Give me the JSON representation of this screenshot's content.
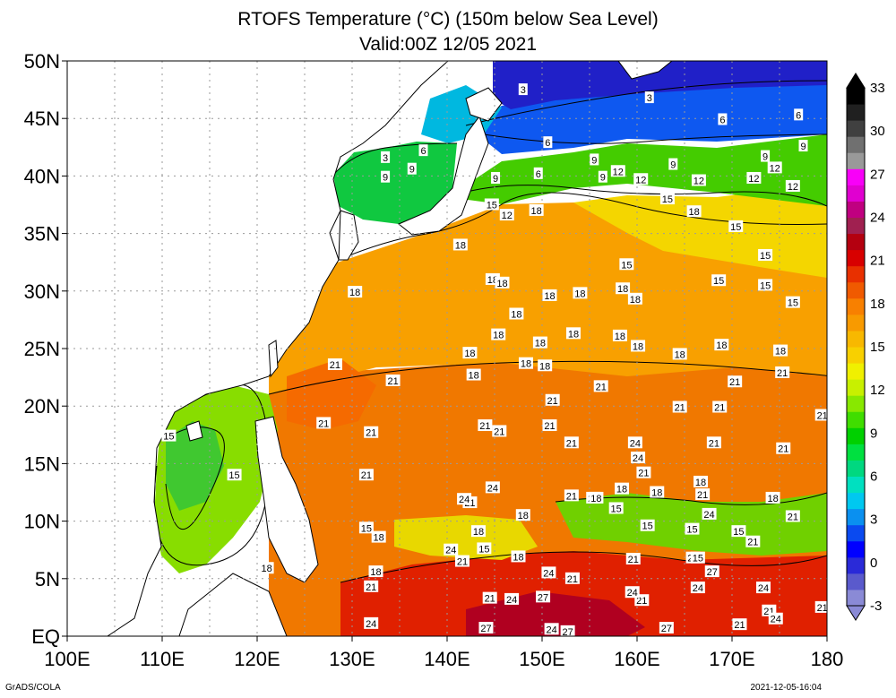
{
  "title": "RTOFS Temperature (°C) (150m below Sea Level)",
  "subtitle": "Valid:00Z 12/05 2021",
  "footer_left": "GrADS/COLA",
  "footer_right": "2021-12-05-16:04",
  "lat_labels": [
    "EQ",
    "5N",
    "10N",
    "15N",
    "20N",
    "25N",
    "30N",
    "35N",
    "40N",
    "45N",
    "50N"
  ],
  "lon_labels": [
    "100E",
    "110E",
    "120E",
    "130E",
    "140E",
    "150E",
    "160E",
    "170E",
    "180"
  ],
  "colorbar": {
    "labels": [
      "-3",
      "0",
      "3",
      "6",
      "9",
      "12",
      "15",
      "18",
      "21",
      "24",
      "27",
      "30",
      "33"
    ],
    "colors": [
      "#8a8ad6",
      "#5a5acc",
      "#2a2ad8",
      "#0000ff",
      "#0a4af0",
      "#0a90f0",
      "#00c8f0",
      "#00e0c0",
      "#00d880",
      "#00e040",
      "#00d000",
      "#40dd00",
      "#88e800",
      "#c8f000",
      "#f0f000",
      "#f8d000",
      "#f8b800",
      "#f89a00",
      "#f88000",
      "#f05a00",
      "#e83000",
      "#d80000",
      "#b40010",
      "#a02050",
      "#c00080",
      "#e000d0",
      "#f800f8",
      "#999999",
      "#707070",
      "#404040",
      "#202020",
      "#000000"
    ]
  },
  "chart_data": {
    "type": "heatmap",
    "variable": "RTOFS Temperature (°C)",
    "depth": "150m below Sea Level",
    "valid": "00Z 12/05 2021",
    "xlim": [
      100,
      180
    ],
    "ylim": [
      0,
      50
    ],
    "color_range": [
      -3,
      33
    ],
    "contour_labels": [
      {
        "lon": 148.0,
        "lat": 47.5,
        "value": "3"
      },
      {
        "lon": 161.3,
        "lat": 46.8,
        "value": "3"
      },
      {
        "lon": 133.5,
        "lat": 41.6,
        "value": "3"
      },
      {
        "lon": 137.5,
        "lat": 42.2,
        "value": "6"
      },
      {
        "lon": 150.6,
        "lat": 42.9,
        "value": "6"
      },
      {
        "lon": 169.0,
        "lat": 44.9,
        "value": "6"
      },
      {
        "lon": 177.0,
        "lat": 45.3,
        "value": "6"
      },
      {
        "lon": 133.5,
        "lat": 39.9,
        "value": "9"
      },
      {
        "lon": 136.3,
        "lat": 40.6,
        "value": "9"
      },
      {
        "lon": 145.1,
        "lat": 39.8,
        "value": "9"
      },
      {
        "lon": 155.5,
        "lat": 41.4,
        "value": "9"
      },
      {
        "lon": 163.8,
        "lat": 41.0,
        "value": "9"
      },
      {
        "lon": 173.5,
        "lat": 41.7,
        "value": "9"
      },
      {
        "lon": 177.5,
        "lat": 42.6,
        "value": "9"
      },
      {
        "lon": 158.0,
        "lat": 40.4,
        "value": "12"
      },
      {
        "lon": 160.4,
        "lat": 39.7,
        "value": "12"
      },
      {
        "lon": 166.5,
        "lat": 39.6,
        "value": "12"
      },
      {
        "lon": 172.3,
        "lat": 39.8,
        "value": "12"
      },
      {
        "lon": 176.4,
        "lat": 39.1,
        "value": "12"
      },
      {
        "lon": 146.3,
        "lat": 36.6,
        "value": "12"
      },
      {
        "lon": 174.5,
        "lat": 40.7,
        "value": "12"
      },
      {
        "lon": 149.6,
        "lat": 40.2,
        "value": "6"
      },
      {
        "lon": 156.4,
        "lat": 39.9,
        "value": "9"
      },
      {
        "lon": 144.7,
        "lat": 37.5,
        "value": "15"
      },
      {
        "lon": 163.2,
        "lat": 38.0,
        "value": "15"
      },
      {
        "lon": 170.4,
        "lat": 35.6,
        "value": "15"
      },
      {
        "lon": 173.5,
        "lat": 33.1,
        "value": "15"
      },
      {
        "lon": 158.9,
        "lat": 32.3,
        "value": "15"
      },
      {
        "lon": 168.6,
        "lat": 30.9,
        "value": "15"
      },
      {
        "lon": 173.5,
        "lat": 30.5,
        "value": "15"
      },
      {
        "lon": 176.4,
        "lat": 29.0,
        "value": "15"
      },
      {
        "lon": 149.4,
        "lat": 37.0,
        "value": "18"
      },
      {
        "lon": 166.0,
        "lat": 36.9,
        "value": "18"
      },
      {
        "lon": 141.4,
        "lat": 34.0,
        "value": "18"
      },
      {
        "lon": 130.3,
        "lat": 29.9,
        "value": "18"
      },
      {
        "lon": 144.8,
        "lat": 31.0,
        "value": "18"
      },
      {
        "lon": 145.8,
        "lat": 30.7,
        "value": "18"
      },
      {
        "lon": 150.8,
        "lat": 29.6,
        "value": "18"
      },
      {
        "lon": 154.0,
        "lat": 29.8,
        "value": "18"
      },
      {
        "lon": 158.5,
        "lat": 30.2,
        "value": "18"
      },
      {
        "lon": 159.8,
        "lat": 29.3,
        "value": "18"
      },
      {
        "lon": 147.3,
        "lat": 28.0,
        "value": "18"
      },
      {
        "lon": 153.3,
        "lat": 26.3,
        "value": "18"
      },
      {
        "lon": 158.2,
        "lat": 26.1,
        "value": "18"
      },
      {
        "lon": 145.4,
        "lat": 26.2,
        "value": "18"
      },
      {
        "lon": 149.8,
        "lat": 25.5,
        "value": "18"
      },
      {
        "lon": 160.1,
        "lat": 25.2,
        "value": "18"
      },
      {
        "lon": 164.5,
        "lat": 24.5,
        "value": "18"
      },
      {
        "lon": 168.9,
        "lat": 25.3,
        "value": "18"
      },
      {
        "lon": 175.1,
        "lat": 24.8,
        "value": "18"
      },
      {
        "lon": 142.4,
        "lat": 24.6,
        "value": "18"
      },
      {
        "lon": 142.8,
        "lat": 22.7,
        "value": "18"
      },
      {
        "lon": 148.3,
        "lat": 23.7,
        "value": "18"
      },
      {
        "lon": 150.3,
        "lat": 23.5,
        "value": "18"
      },
      {
        "lon": 128.2,
        "lat": 23.6,
        "value": "21"
      },
      {
        "lon": 134.3,
        "lat": 22.2,
        "value": "21"
      },
      {
        "lon": 170.3,
        "lat": 22.1,
        "value": "21"
      },
      {
        "lon": 175.3,
        "lat": 22.9,
        "value": "21"
      },
      {
        "lon": 156.2,
        "lat": 21.7,
        "value": "21"
      },
      {
        "lon": 151.1,
        "lat": 20.5,
        "value": "21"
      },
      {
        "lon": 164.5,
        "lat": 19.9,
        "value": "21"
      },
      {
        "lon": 168.7,
        "lat": 19.9,
        "value": "21"
      },
      {
        "lon": 179.5,
        "lat": 19.2,
        "value": "21"
      },
      {
        "lon": 127.0,
        "lat": 18.5,
        "value": "21"
      },
      {
        "lon": 132.0,
        "lat": 17.7,
        "value": "21"
      },
      {
        "lon": 150.8,
        "lat": 18.3,
        "value": "21"
      },
      {
        "lon": 145.5,
        "lat": 17.8,
        "value": "21"
      },
      {
        "lon": 144.0,
        "lat": 18.3,
        "value": "21"
      },
      {
        "lon": 153.1,
        "lat": 16.8,
        "value": "21"
      },
      {
        "lon": 168.1,
        "lat": 16.8,
        "value": "21"
      },
      {
        "lon": 175.4,
        "lat": 16.3,
        "value": "21"
      },
      {
        "lon": 131.5,
        "lat": 14.0,
        "value": "21"
      },
      {
        "lon": 160.7,
        "lat": 14.2,
        "value": "21"
      },
      {
        "lon": 153.1,
        "lat": 12.2,
        "value": "21"
      },
      {
        "lon": 142.4,
        "lat": 11.6,
        "value": "21"
      },
      {
        "lon": 176.4,
        "lat": 10.4,
        "value": "21"
      },
      {
        "lon": 159.6,
        "lat": 6.7,
        "value": "21"
      },
      {
        "lon": 153.2,
        "lat": 5.0,
        "value": "21"
      },
      {
        "lon": 141.6,
        "lat": 6.5,
        "value": "21"
      },
      {
        "lon": 165.9,
        "lat": 6.8,
        "value": "21"
      },
      {
        "lon": 160.5,
        "lat": 3.1,
        "value": "21"
      },
      {
        "lon": 132.0,
        "lat": 4.3,
        "value": "21"
      },
      {
        "lon": 144.5,
        "lat": 3.3,
        "value": "21"
      },
      {
        "lon": 179.5,
        "lat": 2.5,
        "value": "21"
      },
      {
        "lon": 173.9,
        "lat": 2.2,
        "value": "21"
      },
      {
        "lon": 170.8,
        "lat": 1.0,
        "value": "21"
      },
      {
        "lon": 159.8,
        "lat": 16.8,
        "value": "24"
      },
      {
        "lon": 160.1,
        "lat": 15.5,
        "value": "24"
      },
      {
        "lon": 144.8,
        "lat": 12.9,
        "value": "24"
      },
      {
        "lon": 167.6,
        "lat": 10.6,
        "value": "24"
      },
      {
        "lon": 155.4,
        "lat": 12.0,
        "value": "24"
      },
      {
        "lon": 140.4,
        "lat": 7.5,
        "value": "24"
      },
      {
        "lon": 150.7,
        "lat": 5.5,
        "value": "24"
      },
      {
        "lon": 146.8,
        "lat": 3.2,
        "value": "24"
      },
      {
        "lon": 166.4,
        "lat": 4.2,
        "value": "24"
      },
      {
        "lon": 159.5,
        "lat": 3.8,
        "value": "24"
      },
      {
        "lon": 173.3,
        "lat": 4.2,
        "value": "24"
      },
      {
        "lon": 174.6,
        "lat": 1.5,
        "value": "24"
      },
      {
        "lon": 132.0,
        "lat": 1.1,
        "value": "24"
      },
      {
        "lon": 151.0,
        "lat": 0.6,
        "value": "24"
      },
      {
        "lon": 167.9,
        "lat": 5.6,
        "value": "27"
      },
      {
        "lon": 150.1,
        "lat": 3.4,
        "value": "27"
      },
      {
        "lon": 144.1,
        "lat": 0.7,
        "value": "27"
      },
      {
        "lon": 152.7,
        "lat": 0.4,
        "value": "27"
      },
      {
        "lon": 163.1,
        "lat": 0.7,
        "value": "27"
      },
      {
        "lon": 110.7,
        "lat": 17.4,
        "value": "15"
      },
      {
        "lon": 117.6,
        "lat": 14.0,
        "value": "15"
      },
      {
        "lon": 131.5,
        "lat": 9.4,
        "value": "15"
      },
      {
        "lon": 143.9,
        "lat": 7.6,
        "value": "15"
      },
      {
        "lon": 161.1,
        "lat": 9.6,
        "value": "15"
      },
      {
        "lon": 165.8,
        "lat": 9.3,
        "value": "15"
      },
      {
        "lon": 170.7,
        "lat": 9.1,
        "value": "15"
      },
      {
        "lon": 166.4,
        "lat": 6.8,
        "value": "15"
      },
      {
        "lon": 157.8,
        "lat": 11.1,
        "value": "15"
      },
      {
        "lon": 155.7,
        "lat": 12.0,
        "value": "18"
      },
      {
        "lon": 162.1,
        "lat": 12.5,
        "value": "18"
      },
      {
        "lon": 158.4,
        "lat": 12.8,
        "value": "18"
      },
      {
        "lon": 166.7,
        "lat": 13.4,
        "value": "18"
      },
      {
        "lon": 174.3,
        "lat": 12.0,
        "value": "18"
      },
      {
        "lon": 148.0,
        "lat": 10.5,
        "value": "18"
      },
      {
        "lon": 143.3,
        "lat": 9.1,
        "value": "18"
      },
      {
        "lon": 132.8,
        "lat": 8.6,
        "value": "18"
      },
      {
        "lon": 121.0,
        "lat": 5.9,
        "value": "18"
      },
      {
        "lon": 132.5,
        "lat": 5.6,
        "value": "18"
      },
      {
        "lon": 147.5,
        "lat": 6.9,
        "value": "18"
      },
      {
        "lon": 166.9,
        "lat": 12.3,
        "value": "21"
      },
      {
        "lon": 172.2,
        "lat": 8.2,
        "value": "21"
      },
      {
        "lon": 141.8,
        "lat": 11.9,
        "value": "24"
      }
    ]
  }
}
